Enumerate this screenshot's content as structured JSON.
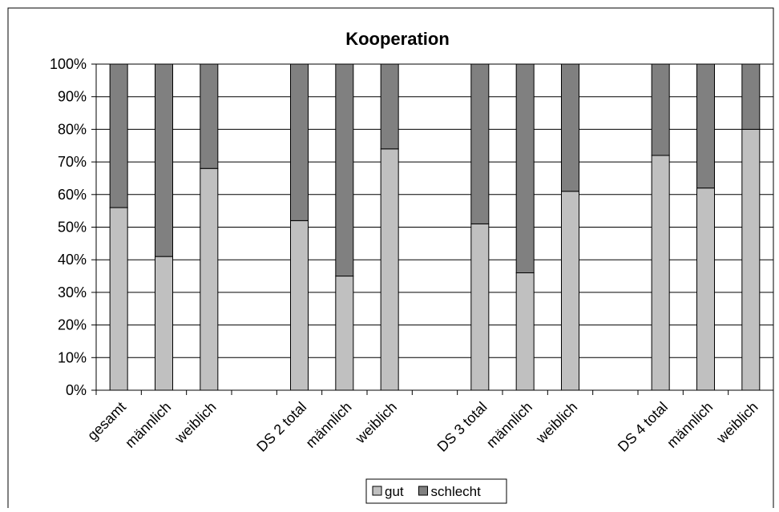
{
  "chart_data": {
    "type": "bar",
    "stacked": true,
    "percent": true,
    "title": "Kooperation",
    "categories": [
      "gesamt",
      "männlich",
      "weiblich",
      "",
      "DS 2 total",
      "männlich",
      "weiblich",
      "",
      "DS 3 total",
      "männlich",
      "weiblich",
      "",
      "DS 4 total",
      "männlich",
      "weiblich"
    ],
    "series": [
      {
        "name": "gut",
        "color": "#c0c0c0",
        "values": [
          56,
          41,
          68,
          null,
          52,
          35,
          74,
          null,
          51,
          36,
          61,
          null,
          72,
          62,
          80
        ]
      },
      {
        "name": "schlecht",
        "color": "#808080",
        "values": [
          44,
          59,
          32,
          null,
          48,
          65,
          26,
          null,
          49,
          64,
          39,
          null,
          28,
          38,
          20
        ]
      }
    ],
    "ylim": [
      0,
      100
    ],
    "yticks": [
      "0%",
      "10%",
      "20%",
      "30%",
      "40%",
      "50%",
      "60%",
      "70%",
      "80%",
      "90%",
      "100%"
    ],
    "grid": true,
    "legend": "bottom"
  }
}
